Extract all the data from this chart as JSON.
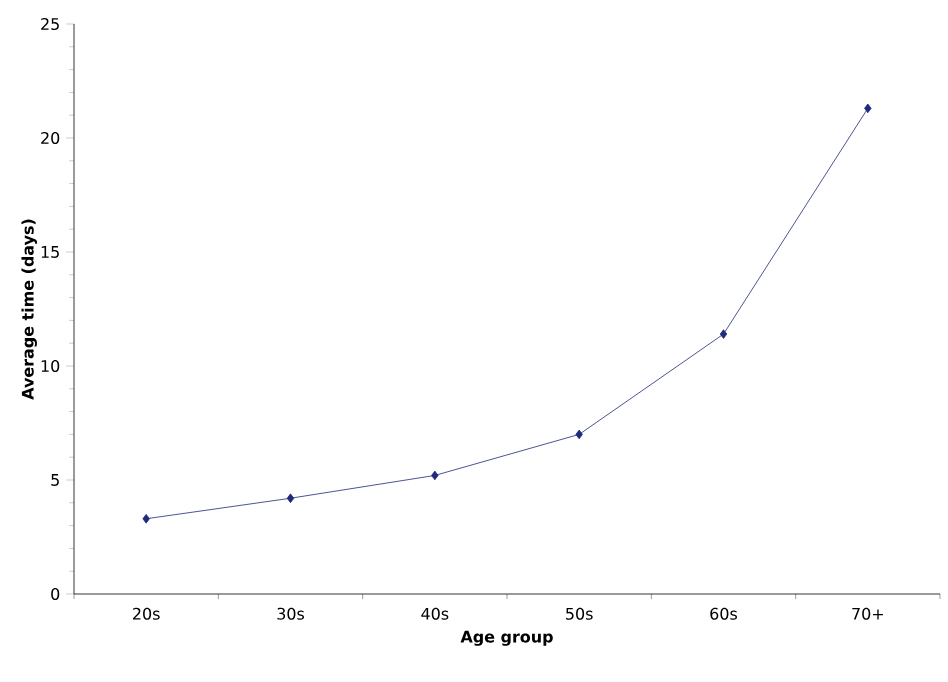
{
  "chart_data": {
    "type": "line",
    "xlabel": "Age group",
    "ylabel": "Average time (days)",
    "categories": [
      "20s",
      "30s",
      "40s",
      "50s",
      "60s",
      "70+"
    ],
    "series": [
      {
        "color": "#1f2a7a",
        "values": [
          3.3,
          4.2,
          5.2,
          7.0,
          11.4,
          21.3
        ]
      }
    ],
    "ylim": [
      0,
      25
    ],
    "yticks": [
      0,
      5,
      10,
      15,
      20,
      25
    ],
    "marker": "diamond",
    "line_style": "solid",
    "grid": false
  }
}
